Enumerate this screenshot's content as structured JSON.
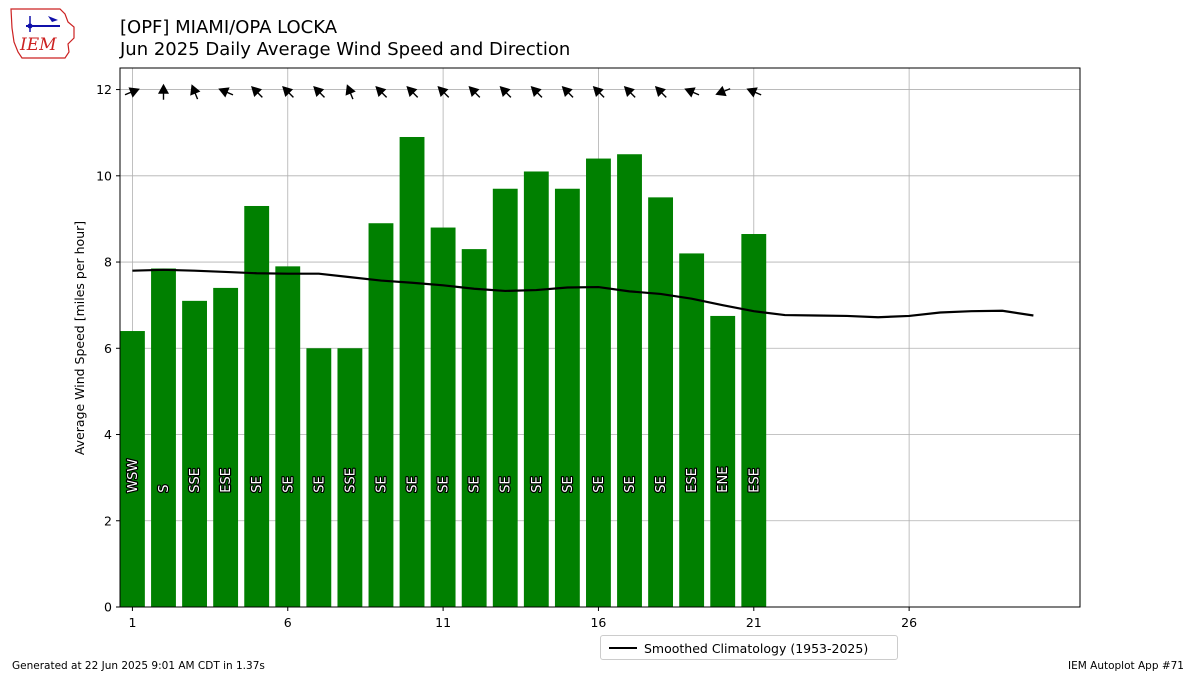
{
  "header": {
    "title": "[OPF] MIAMI/OPA LOCKA",
    "subtitle": "Jun 2025 Daily Average Wind Speed and Direction"
  },
  "logo": {
    "text": "IEM"
  },
  "footer": {
    "generated": "Generated at 22 Jun 2025 9:01 AM CDT in 1.37s",
    "app": "IEM Autoplot App #71"
  },
  "legend": {
    "climatology_label": "Smoothed Climatology (1953-2025)"
  },
  "colors": {
    "bar": "#008000",
    "climatology": "#000000",
    "grid": "#b0b0b0",
    "logo_red": "#cc2222",
    "logo_blue": "#1010aa"
  },
  "chart_data": {
    "type": "bar",
    "ylabel": "Average Wind Speed [miles per hour]",
    "xlim": [
      0.6,
      31.5
    ],
    "ylim": [
      0,
      12.5
    ],
    "x_ticks": [
      "1",
      "6",
      "11",
      "16",
      "21",
      "26"
    ],
    "y_ticks": [
      "0",
      "2",
      "4",
      "6",
      "8",
      "10",
      "12"
    ],
    "grid": true,
    "legend_position": "below-center",
    "days": [
      1,
      2,
      3,
      4,
      5,
      6,
      7,
      8,
      9,
      10,
      11,
      12,
      13,
      14,
      15,
      16,
      17,
      18,
      19,
      20,
      21
    ],
    "speed": [
      6.4,
      7.85,
      7.1,
      7.4,
      9.3,
      7.9,
      6.0,
      6.0,
      8.9,
      10.9,
      8.8,
      8.3,
      9.7,
      10.1,
      9.7,
      10.4,
      10.5,
      9.5,
      8.2,
      6.75,
      8.65
    ],
    "direction_labels": [
      "WSW",
      "S",
      "SSE",
      "ESE",
      "SE",
      "SE",
      "SE",
      "SSE",
      "SE",
      "SE",
      "SE",
      "SE",
      "SE",
      "SE",
      "SE",
      "SE",
      "SE",
      "SE",
      "ESE",
      "ENE",
      "ESE"
    ],
    "direction_deg": [
      248,
      180,
      158,
      113,
      135,
      135,
      135,
      158,
      135,
      135,
      135,
      135,
      135,
      135,
      135,
      135,
      135,
      135,
      113,
      68,
      113
    ],
    "climatology": {
      "name": "Smoothed Climatology (1953-2025)",
      "days": [
        1,
        2,
        3,
        4,
        5,
        6,
        7,
        8,
        9,
        10,
        11,
        12,
        13,
        14,
        15,
        16,
        17,
        18,
        19,
        20,
        21,
        22,
        23,
        24,
        25,
        26,
        27,
        28,
        29,
        30
      ],
      "values": [
        7.8,
        7.82,
        7.8,
        7.77,
        7.74,
        7.73,
        7.73,
        7.65,
        7.57,
        7.52,
        7.46,
        7.38,
        7.33,
        7.35,
        7.41,
        7.42,
        7.32,
        7.26,
        7.15,
        7.0,
        6.86,
        6.77,
        6.76,
        6.75,
        6.72,
        6.75,
        6.83,
        6.86,
        6.87,
        6.76
      ]
    }
  }
}
